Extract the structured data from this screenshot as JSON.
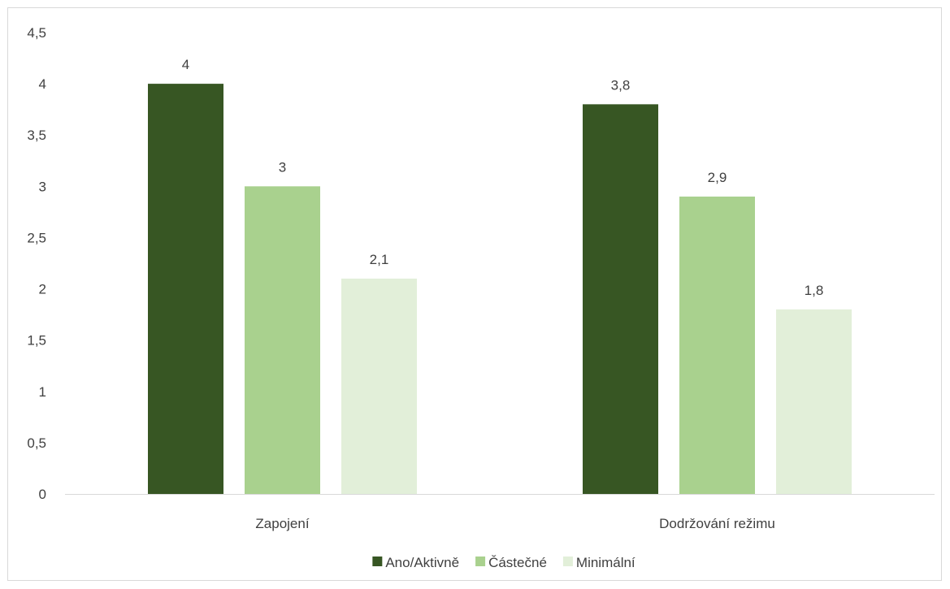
{
  "chart_data": {
    "type": "bar",
    "title": "",
    "xlabel": "",
    "ylabel": "",
    "categories": [
      "Zapojení",
      "Dodržování režimu"
    ],
    "series": [
      {
        "name": "Ano/Aktivně",
        "values": [
          4,
          3.8
        ],
        "color": "#375623"
      },
      {
        "name": "Částečné",
        "values": [
          3,
          2.9
        ],
        "color": "#a9d18e"
      },
      {
        "name": "Minimální",
        "values": [
          2.1,
          1.8
        ],
        "color": "#e2efd9"
      }
    ],
    "data_labels": [
      [
        "4",
        "3,8"
      ],
      [
        "3",
        "2,9"
      ],
      [
        "2,1",
        "1,8"
      ]
    ],
    "ylim": [
      0,
      4.5
    ],
    "yticks": [
      0,
      0.5,
      1,
      1.5,
      2,
      2.5,
      3,
      3.5,
      4,
      4.5
    ],
    "ytick_labels": [
      "0",
      "0,5",
      "1",
      "1,5",
      "2",
      "2,5",
      "3",
      "3,5",
      "4",
      "4,5"
    ],
    "grid": false,
    "legend_position": "bottom"
  }
}
